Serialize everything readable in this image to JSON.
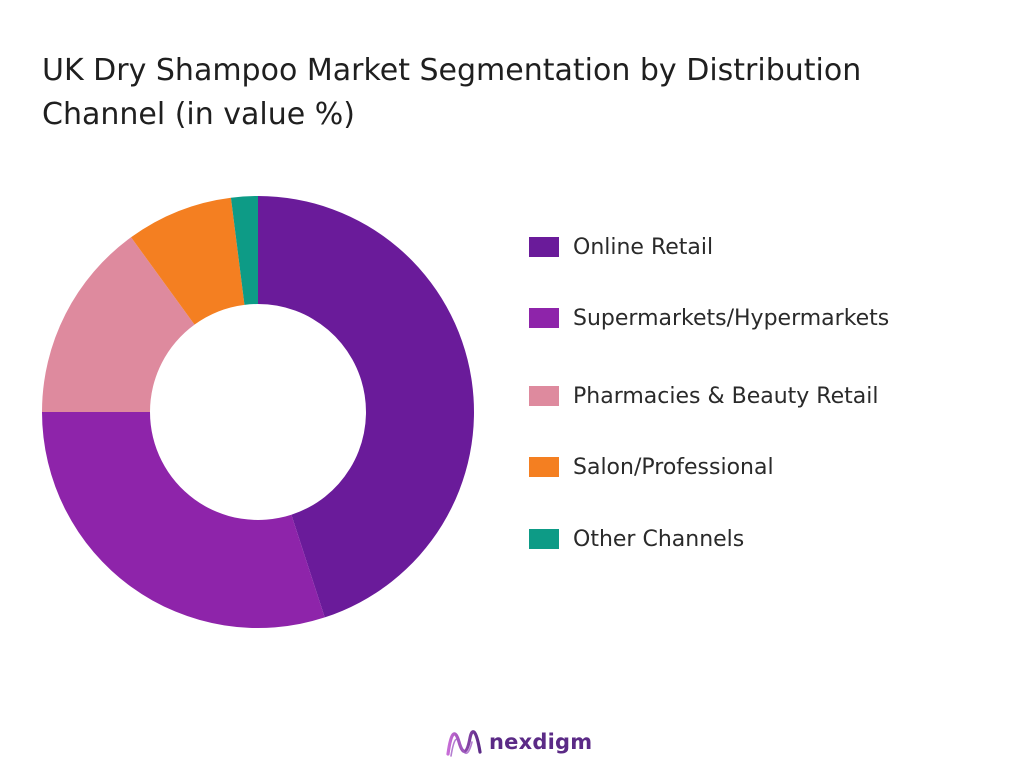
{
  "chart_data": {
    "type": "pie",
    "variant": "donut",
    "title": "UK Dry Shampoo Market Segmentation by Distribution Channel (in value %)",
    "legend_position": "right",
    "categories": [
      "Online Retail",
      "Supermarkets/Hypermarkets",
      "Pharmacies & Beauty Retail",
      "Salon/Professional",
      "Other Channels"
    ],
    "values": [
      45,
      30,
      15,
      8,
      2
    ],
    "colors": [
      "#6a1b9a",
      "#8e24aa",
      "#de8a9e",
      "#f47f21",
      "#0d9b86"
    ]
  },
  "brand": {
    "name": "nexdigm",
    "color": "#5b2a86"
  }
}
